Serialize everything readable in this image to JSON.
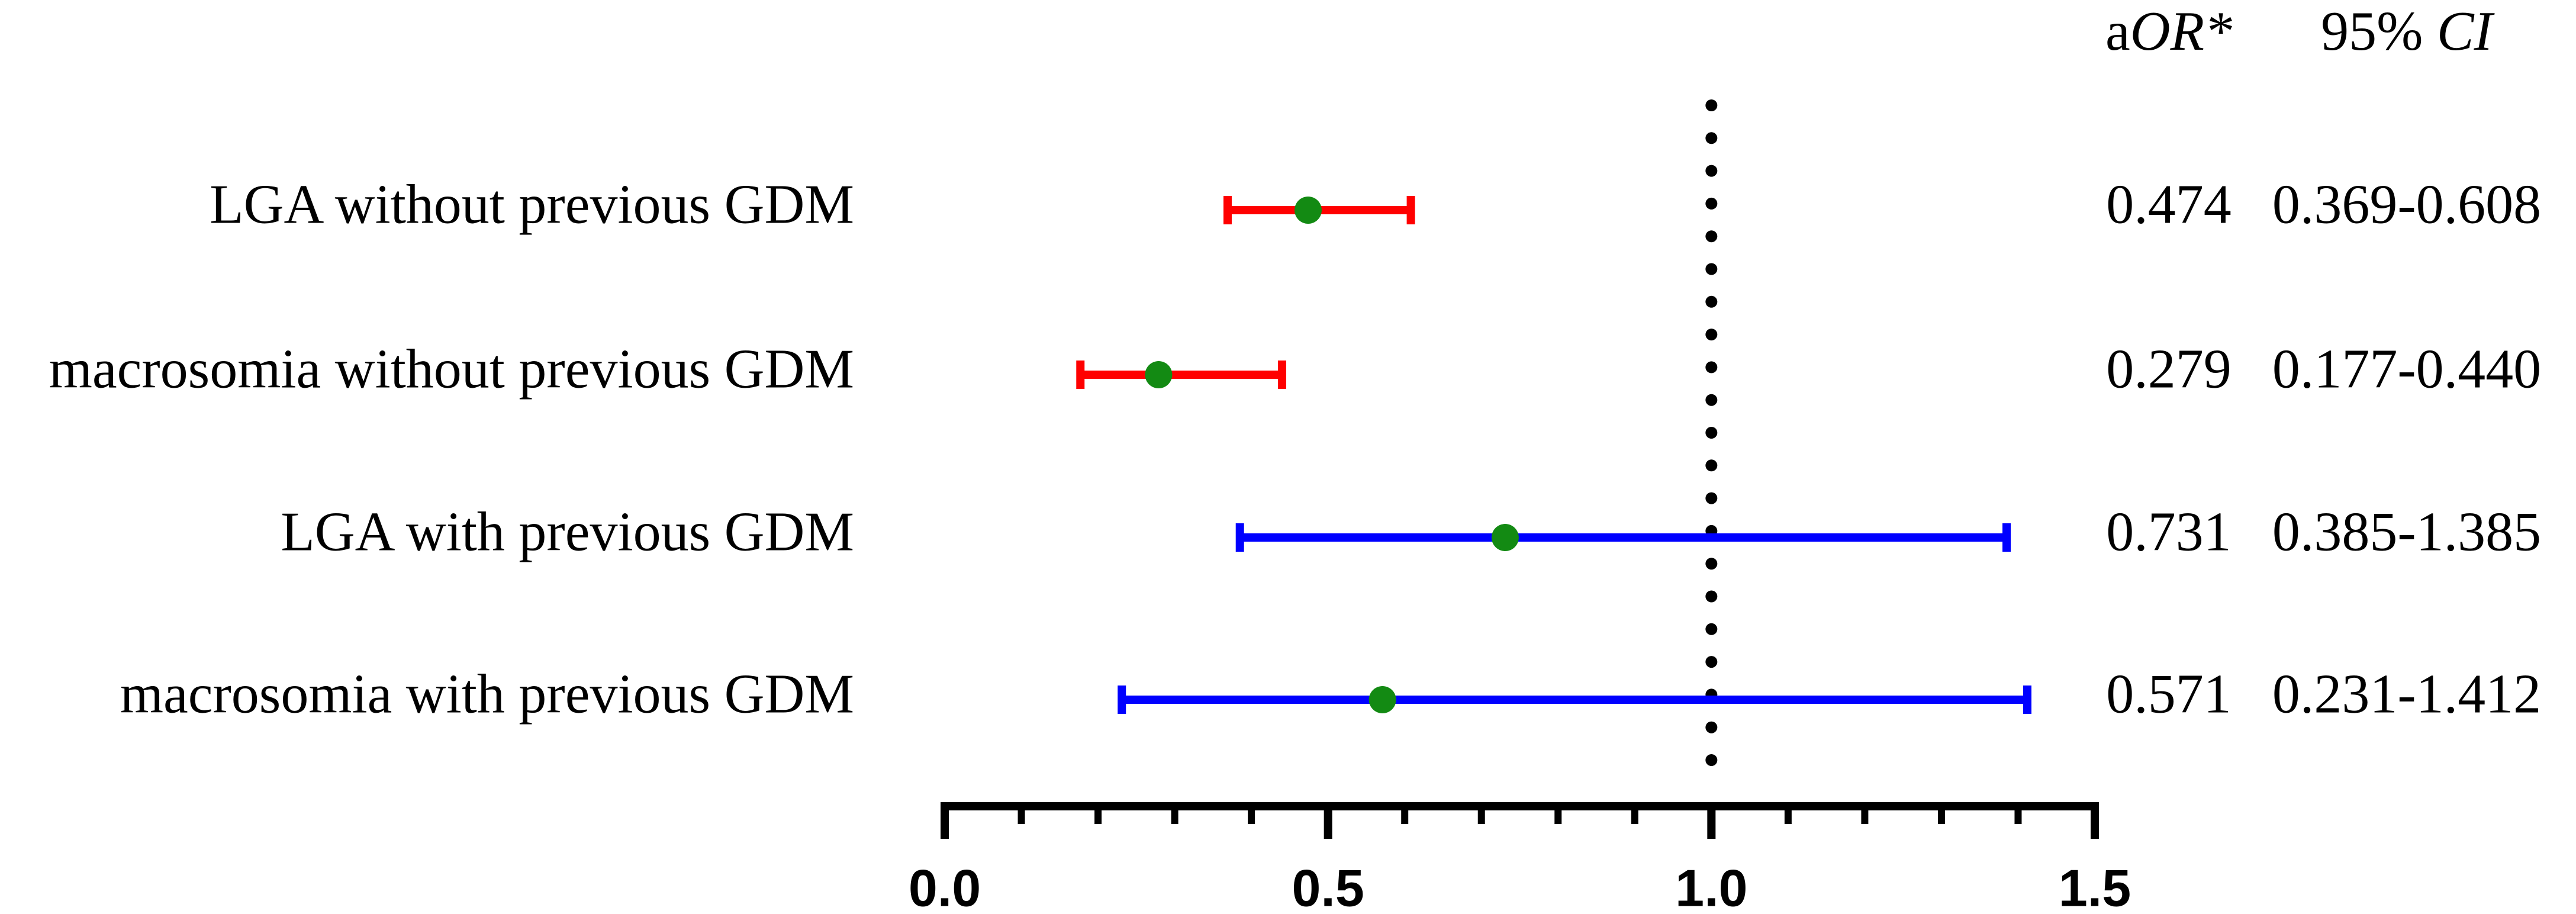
{
  "chart_data": {
    "type": "forest",
    "categories": [
      "LGA without previous GDM",
      "macrosomia without previous GDM",
      "LGA with previous GDM",
      "macrosomia with previous GDM"
    ],
    "values": [
      0.474,
      0.279,
      0.731,
      0.571
    ],
    "lower": [
      0.369,
      0.177,
      0.385,
      0.231
    ],
    "upper": [
      0.608,
      0.44,
      1.385,
      1.412
    ],
    "ci_labels": [
      "0.369-0.608",
      "0.177-0.440",
      "0.385-1.385",
      "0.231-1.412"
    ],
    "bar_colors": [
      "#ff0000",
      "#ff0000",
      "#0000ff",
      "#0000ff"
    ],
    "marker_color": "#138a13",
    "column_headers": [
      [
        {
          "text": "a"
        },
        {
          "text": "OR*",
          "italic": true
        }
      ],
      [
        {
          "text": "95% "
        },
        {
          "text": "CI",
          "italic": true
        }
      ]
    ],
    "xlim": [
      0,
      1.5
    ],
    "xticks": [
      {
        "value": 0,
        "label": "0.0"
      },
      {
        "value": 0.5,
        "label": "0.5"
      },
      {
        "value": 1,
        "label": "1.0"
      },
      {
        "value": 1.5,
        "label": "1.5"
      }
    ],
    "minor_xticks": [
      0.1,
      0.2,
      0.3,
      0.4,
      0.6,
      0.7,
      0.8,
      0.9,
      1.1,
      1.2,
      1.3,
      1.4
    ],
    "reference_line": 1
  }
}
